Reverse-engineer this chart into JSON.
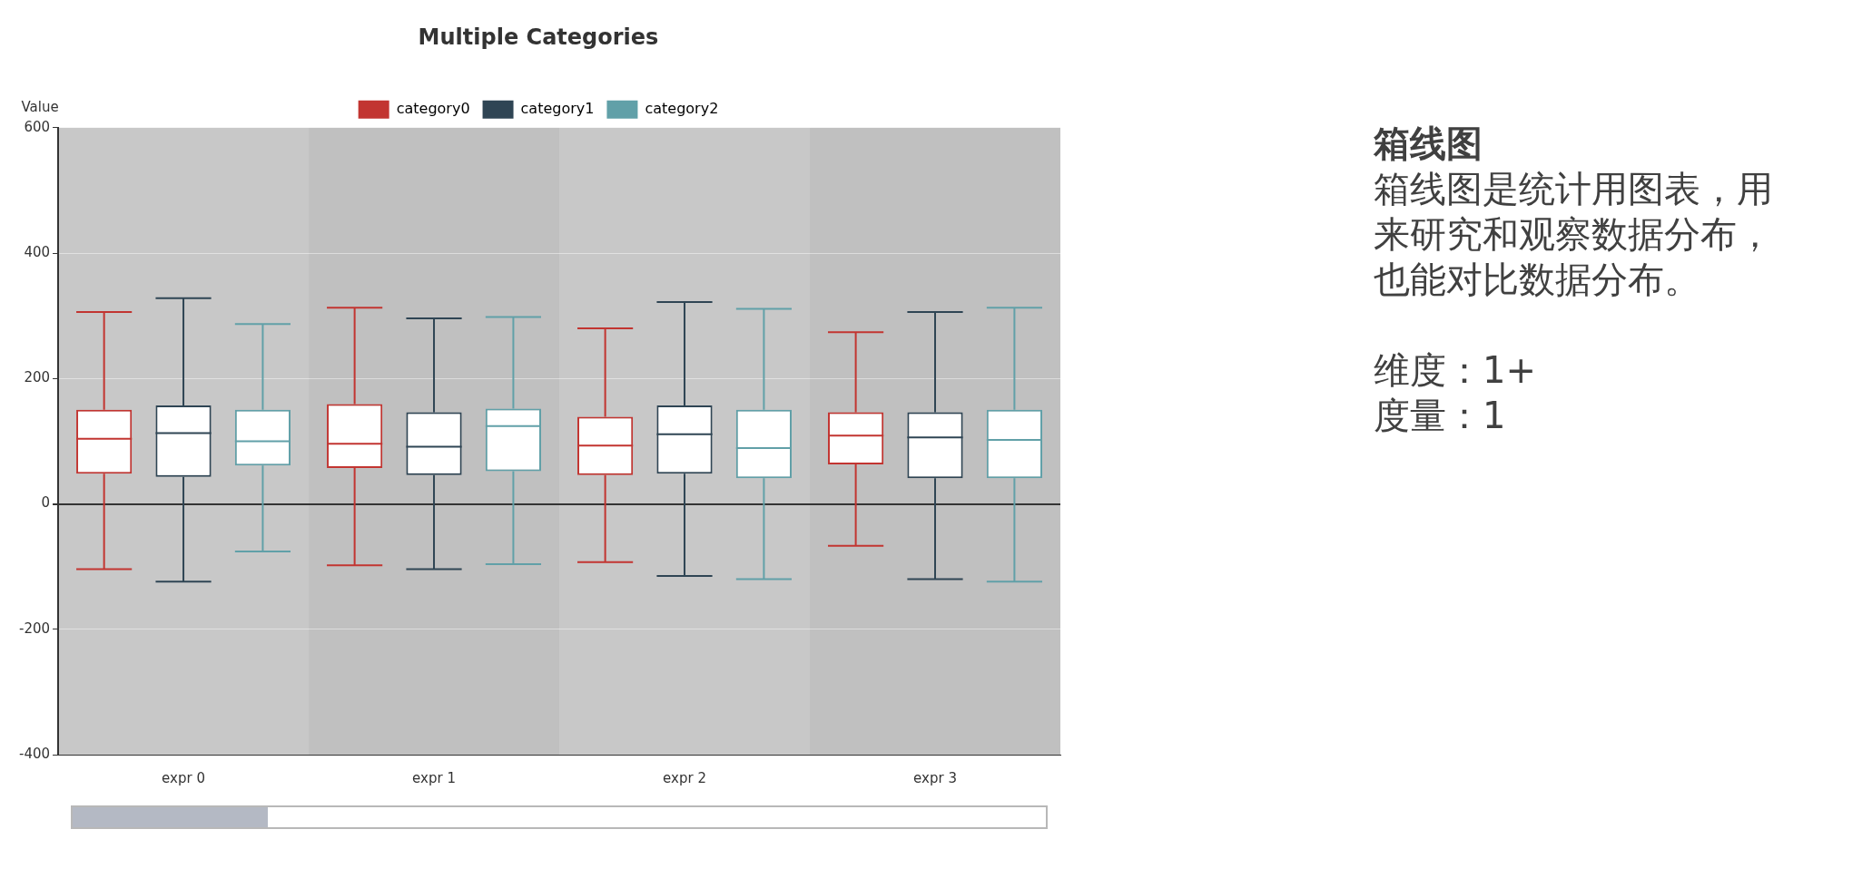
{
  "chart_data": {
    "type": "box",
    "title": "Multiple Categories",
    "ylabel": "Value",
    "categories": [
      "expr 0",
      "expr 1",
      "expr 2",
      "expr 3"
    ],
    "series": [
      {
        "name": "category0",
        "color": "#c23531",
        "boxes": [
          {
            "low": -104,
            "q1": 48,
            "median": 104,
            "q3": 150,
            "high": 306
          },
          {
            "low": -98,
            "q1": 57,
            "median": 96,
            "q3": 159,
            "high": 313
          },
          {
            "low": -93,
            "q1": 46,
            "median": 93,
            "q3": 139,
            "high": 280
          },
          {
            "low": -67,
            "q1": 63,
            "median": 109,
            "q3": 146,
            "high": 274
          }
        ]
      },
      {
        "name": "category1",
        "color": "#2f4554",
        "boxes": [
          {
            "low": -124,
            "q1": 43,
            "median": 113,
            "q3": 157,
            "high": 328
          },
          {
            "low": -104,
            "q1": 46,
            "median": 91,
            "q3": 146,
            "high": 296
          },
          {
            "low": -115,
            "q1": 48,
            "median": 111,
            "q3": 157,
            "high": 322
          },
          {
            "low": -120,
            "q1": 41,
            "median": 106,
            "q3": 146,
            "high": 306
          }
        ]
      },
      {
        "name": "category2",
        "color": "#61a0a8",
        "boxes": [
          {
            "low": -76,
            "q1": 61,
            "median": 100,
            "q3": 150,
            "high": 287
          },
          {
            "low": -96,
            "q1": 52,
            "median": 124,
            "q3": 152,
            "high": 298
          },
          {
            "low": -120,
            "q1": 41,
            "median": 89,
            "q3": 150,
            "high": 311
          },
          {
            "low": -124,
            "q1": 41,
            "median": 102,
            "q3": 150,
            "high": 313
          }
        ]
      }
    ],
    "ylim": [
      -400,
      600
    ],
    "yticks": [
      -400,
      -200,
      0,
      200,
      400,
      600
    ],
    "grid": "y",
    "legend": "top",
    "annotations": [
      "箱线图",
      "箱线图是统计用图表，用来研究和观察数据分布，也能对比数据分布。",
      "维度：1+",
      "度量：1"
    ]
  }
}
